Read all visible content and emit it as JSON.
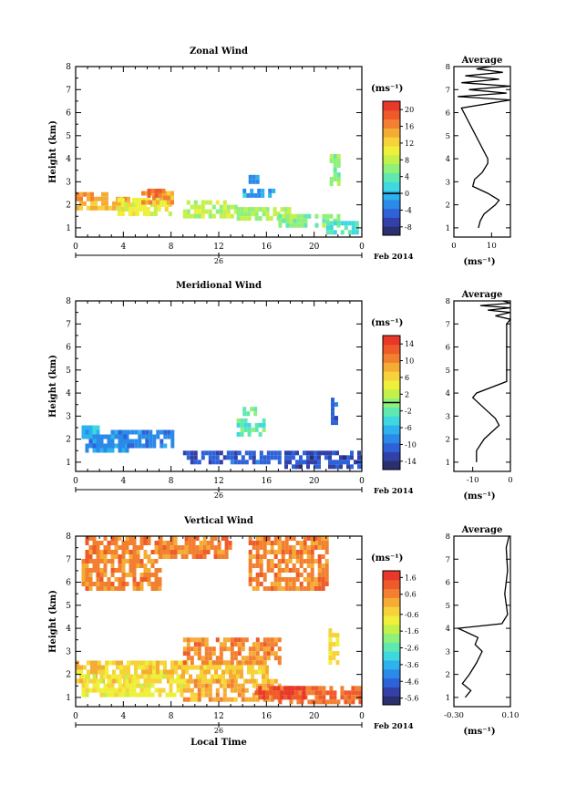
{
  "figure": {
    "date_label": "Feb 2014",
    "day_label": "26",
    "x_axis_label": "Local Time",
    "y_axis_label": "Height (km)",
    "colorbar_unit": "(ms⁻¹)",
    "profile_xlabel": "(ms⁻¹)",
    "profile_title": "Average",
    "palette": [
      "#2a2f6e",
      "#3340a8",
      "#2e62d9",
      "#2b8ae8",
      "#2db2ee",
      "#40d8e0",
      "#5fe8b0",
      "#8ff07a",
      "#c4f04a",
      "#eef03a",
      "#f8d23a",
      "#f5ac35",
      "#f28030",
      "#ee5a2a",
      "#e8382a"
    ]
  },
  "chart_data": [
    {
      "type": "heatmap",
      "title": "Zonal Wind",
      "xlabel": "Local Time",
      "ylabel": "Height (km)",
      "xticks": [
        "0",
        "4",
        "8",
        "12",
        "16",
        "20",
        "0"
      ],
      "yticks": [
        "1",
        "2",
        "3",
        "4",
        "5",
        "6",
        "7",
        "8"
      ],
      "xlim": [
        0,
        24
      ],
      "ylim": [
        0.6,
        8
      ],
      "colorbar": {
        "unit": "(ms⁻¹)",
        "ticks": [
          "-8",
          "-4",
          "0",
          "4",
          "8",
          "12",
          "16",
          "20"
        ],
        "range": [
          -10,
          22
        ],
        "zero_line": 0
      },
      "profile": {
        "title": "Average",
        "xlabel": "(ms⁻¹)",
        "xticks": [
          "0",
          "10"
        ],
        "xlim": [
          0,
          15
        ],
        "yticks": [
          "1",
          "2",
          "3",
          "4",
          "5",
          "6",
          "7",
          "8"
        ],
        "ylim": [
          0.6,
          8
        ],
        "points": [
          [
            6.5,
            1.0
          ],
          [
            7,
            1.3
          ],
          [
            8,
            1.6
          ],
          [
            11,
            2.0
          ],
          [
            12,
            2.2
          ],
          [
            9,
            2.5
          ],
          [
            5,
            2.8
          ],
          [
            5.5,
            3.1
          ],
          [
            7.5,
            3.4
          ],
          [
            9,
            3.8
          ],
          [
            9,
            4.0
          ],
          [
            2,
            6.2
          ],
          [
            15,
            6.55
          ],
          [
            1,
            6.7
          ],
          [
            14,
            6.85
          ],
          [
            4,
            7.0
          ],
          [
            15,
            7.15
          ],
          [
            2,
            7.3
          ],
          [
            12,
            7.45
          ],
          [
            3,
            7.6
          ],
          [
            13,
            7.75
          ],
          [
            6,
            7.9
          ],
          [
            10,
            8.0
          ]
        ]
      },
      "patches": [
        {
          "x0": 0.0,
          "x1": 4.5,
          "y0": 1.9,
          "y1": 2.35,
          "v": 14
        },
        {
          "x0": 0.0,
          "x1": 2.5,
          "y0": 2.3,
          "y1": 2.55,
          "v": 16
        },
        {
          "x0": 3.5,
          "x1": 8.0,
          "y0": 1.7,
          "y1": 2.3,
          "v": 10
        },
        {
          "x0": 5.5,
          "x1": 8.0,
          "y0": 2.2,
          "y1": 2.6,
          "v": 15
        },
        {
          "x0": 6.0,
          "x1": 7.5,
          "y0": 2.4,
          "y1": 2.7,
          "v": 18
        },
        {
          "x0": 9.0,
          "x1": 13.5,
          "y0": 1.6,
          "y1": 2.2,
          "v": 8
        },
        {
          "x0": 13.5,
          "x1": 18.0,
          "y0": 1.5,
          "y1": 1.9,
          "v": 7
        },
        {
          "x0": 17.0,
          "x1": 22.0,
          "y0": 1.2,
          "y1": 1.6,
          "v": 6
        },
        {
          "x0": 21.0,
          "x1": 24.0,
          "y0": 0.9,
          "y1": 1.3,
          "v": 3
        },
        {
          "x0": 14.0,
          "x1": 16.5,
          "y0": 2.4,
          "y1": 2.7,
          "v": -1
        },
        {
          "x0": 14.5,
          "x1": 15.3,
          "y0": 3.0,
          "y1": 3.3,
          "v": -2
        },
        {
          "x0": 21.3,
          "x1": 22.0,
          "y0": 3.0,
          "y1": 4.2,
          "v": 6
        }
      ]
    },
    {
      "type": "heatmap",
      "title": "Meridional Wind",
      "xlabel": "Local Time",
      "ylabel": "Height (km)",
      "xticks": [
        "0",
        "4",
        "8",
        "12",
        "16",
        "20",
        "0"
      ],
      "yticks": [
        "1",
        "2",
        "3",
        "4",
        "5",
        "6",
        "7",
        "8"
      ],
      "xlim": [
        0,
        24
      ],
      "ylim": [
        0.6,
        8
      ],
      "colorbar": {
        "unit": "(ms⁻¹)",
        "ticks": [
          "-14",
          "-10",
          "-6",
          "-2",
          "2",
          "6",
          "10",
          "14"
        ],
        "range": [
          -16,
          16
        ],
        "zero_line": 0
      },
      "profile": {
        "title": "Average",
        "xlabel": "(ms⁻¹)",
        "xticks": [
          "-10",
          "0"
        ],
        "xlim": [
          -15,
          0
        ],
        "yticks": [
          "1",
          "2",
          "3",
          "4",
          "5",
          "6",
          "7",
          "8"
        ],
        "ylim": [
          0.6,
          8
        ],
        "points": [
          [
            -9,
            1.0
          ],
          [
            -9,
            1.5
          ],
          [
            -7,
            2.0
          ],
          [
            -5,
            2.3
          ],
          [
            -3,
            2.6
          ],
          [
            -4,
            2.9
          ],
          [
            -6,
            3.2
          ],
          [
            -8,
            3.5
          ],
          [
            -10,
            3.8
          ],
          [
            -9,
            4.0
          ],
          [
            -1,
            4.5
          ],
          [
            -1,
            6.0
          ],
          [
            -1,
            7.0
          ],
          [
            0,
            7.2
          ],
          [
            -4,
            7.35
          ],
          [
            0,
            7.5
          ],
          [
            -6,
            7.6
          ],
          [
            0,
            7.7
          ],
          [
            -8,
            7.8
          ],
          [
            0,
            7.9
          ],
          [
            -2,
            8.0
          ]
        ]
      },
      "patches": [
        {
          "x0": 0.5,
          "x1": 4.5,
          "y0": 1.6,
          "y1": 2.4,
          "v": -8
        },
        {
          "x0": 0.5,
          "x1": 2.0,
          "y0": 2.3,
          "y1": 2.6,
          "v": -6
        },
        {
          "x0": 4.0,
          "x1": 8.0,
          "y0": 1.8,
          "y1": 2.4,
          "v": -9
        },
        {
          "x0": 9.0,
          "x1": 17.0,
          "y0": 1.0,
          "y1": 1.5,
          "v": -11
        },
        {
          "x0": 17.5,
          "x1": 24.0,
          "y0": 0.9,
          "y1": 1.5,
          "v": -12
        },
        {
          "x0": 13.5,
          "x1": 15.8,
          "y0": 2.3,
          "y1": 2.9,
          "v": -2
        },
        {
          "x0": 14.0,
          "x1": 15.0,
          "y0": 3.1,
          "y1": 3.4,
          "v": -1
        },
        {
          "x0": 21.4,
          "x1": 21.9,
          "y0": 2.8,
          "y1": 3.8,
          "v": -11
        }
      ]
    },
    {
      "type": "heatmap",
      "title": "Vertical Wind",
      "xlabel": "Local Time",
      "ylabel": "Height (km)",
      "xticks": [
        "0",
        "4",
        "8",
        "12",
        "16",
        "20",
        "0"
      ],
      "yticks": [
        "1",
        "2",
        "3",
        "4",
        "5",
        "6",
        "7",
        "8"
      ],
      "xlim": [
        0,
        24
      ],
      "ylim": [
        0.6,
        8
      ],
      "colorbar": {
        "unit": "(ms⁻¹)",
        "ticks": [
          "-5.6",
          "-4.6",
          "-3.6",
          "-2.6",
          "-1.6",
          "-0.6",
          "0.6",
          "1.6"
        ],
        "range": [
          -6,
          2
        ],
        "zero_line": null
      },
      "profile": {
        "title": "Average",
        "xlabel": "(ms⁻¹)",
        "xticks": [
          "-0.30",
          "0.10"
        ],
        "xlim": [
          -0.3,
          0.1
        ],
        "yticks": [
          "1",
          "2",
          "3",
          "4",
          "5",
          "6",
          "7",
          "8"
        ],
        "ylim": [
          0.6,
          8
        ],
        "points": [
          [
            -0.22,
            1.0
          ],
          [
            -0.18,
            1.3
          ],
          [
            -0.24,
            1.6
          ],
          [
            -0.19,
            2.0
          ],
          [
            -0.14,
            2.5
          ],
          [
            -0.1,
            3.0
          ],
          [
            -0.15,
            3.3
          ],
          [
            -0.13,
            3.6
          ],
          [
            -0.2,
            3.8
          ],
          [
            -0.27,
            4.0
          ],
          [
            0.04,
            4.2
          ],
          [
            0.08,
            4.6
          ],
          [
            0.06,
            5.5
          ],
          [
            0.08,
            6.5
          ],
          [
            0.07,
            7.5
          ],
          [
            0.09,
            8.0
          ]
        ]
      },
      "patches": [
        {
          "x0": 0.0,
          "x1": 16.0,
          "y0": 1.8,
          "y1": 2.6,
          "v": -0.3
        },
        {
          "x0": 0.5,
          "x1": 9.0,
          "y0": 1.1,
          "y1": 2.0,
          "v": -0.8
        },
        {
          "x0": 9.0,
          "x1": 17.0,
          "y0": 1.0,
          "y1": 1.8,
          "v": 0.1
        },
        {
          "x0": 17.0,
          "x1": 24.0,
          "y0": 0.9,
          "y1": 1.5,
          "v": 0.9
        },
        {
          "x0": 15.0,
          "x1": 19.0,
          "y0": 1.0,
          "y1": 1.5,
          "v": 1.5
        },
        {
          "x0": 9.0,
          "x1": 17.0,
          "y0": 2.5,
          "y1": 3.6,
          "v": 0.6
        },
        {
          "x0": 0.5,
          "x1": 7.0,
          "y0": 5.7,
          "y1": 8.0,
          "v": 0.6
        },
        {
          "x0": 7.0,
          "x1": 13.0,
          "y0": 7.2,
          "y1": 8.0,
          "v": 0.6
        },
        {
          "x0": 14.5,
          "x1": 21.0,
          "y0": 5.8,
          "y1": 8.0,
          "v": 0.6
        },
        {
          "x0": 21.2,
          "x1": 22.0,
          "y0": 2.5,
          "y1": 4.0,
          "v": -0.6
        }
      ]
    }
  ]
}
